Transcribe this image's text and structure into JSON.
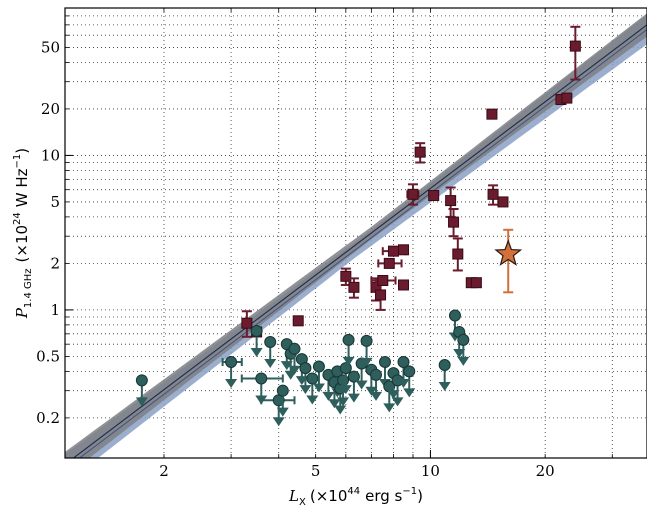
{
  "chart_data": {
    "type": "scatter",
    "x_scale": "log",
    "y_scale": "log",
    "xlim": [
      1.1,
      37
    ],
    "ylim": [
      0.11,
      90
    ],
    "grid": true,
    "xlabel": {
      "var": "L",
      "sub": "X",
      "open": "(",
      "times10": "×10",
      "exp": "44",
      "unit": "erg s",
      "unit_exp": "−1",
      "close": ")"
    },
    "ylabel": {
      "var": "P",
      "sub": "1.4 GHz",
      "open": "(",
      "times10": "×10",
      "exp": "24",
      "unit": "W Hz",
      "unit_exp": "−1",
      "close": ")"
    },
    "x_ticks": [
      {
        "value": 2,
        "label": "2"
      },
      {
        "value": 5,
        "label": "5"
      },
      {
        "value": 10,
        "label": "10"
      },
      {
        "value": 20,
        "label": "20"
      }
    ],
    "y_ticks": [
      {
        "value": 0.2,
        "label": "0.2"
      },
      {
        "value": 0.5,
        "label": "0.5"
      },
      {
        "value": 1,
        "label": "1"
      },
      {
        "value": 2,
        "label": "2"
      },
      {
        "value": 5,
        "label": "5"
      },
      {
        "value": 10,
        "label": "10"
      },
      {
        "value": 20,
        "label": "20"
      },
      {
        "value": 50,
        "label": "50"
      }
    ],
    "colors": {
      "detections": "#6a1c2e",
      "upper_limits": "#2e5f5c",
      "highlight": "#d0703a",
      "fit_line": "#1f2a44",
      "band_dark": "#7c7f84",
      "band_light": "#8aa0c4"
    },
    "series": [
      {
        "kind": "detections",
        "marker": "square",
        "points": [
          {
            "x": 3.3,
            "y": 0.82,
            "yerr": [
              0.67,
              0.98
            ]
          },
          {
            "x": 3.5,
            "y": 0.72
          },
          {
            "x": 4.5,
            "y": 0.85
          },
          {
            "x": 6.0,
            "y": 1.65,
            "yerr": [
              1.45,
              1.85
            ]
          },
          {
            "x": 6.3,
            "y": 1.4,
            "yerr": [
              1.2,
              1.6
            ]
          },
          {
            "x": 7.2,
            "y": 1.4,
            "yerr": [
              1.15,
              1.6
            ]
          },
          {
            "x": 7.4,
            "y": 1.25,
            "yerr": [
              1.0,
              1.5
            ]
          },
          {
            "x": 7.5,
            "y": 1.55,
            "xerr": [
              7.0,
              8.1
            ]
          },
          {
            "x": 7.8,
            "y": 2.0,
            "xerr": [
              7.3,
              8.4
            ]
          },
          {
            "x": 8.0,
            "y": 2.4,
            "xerr": [
              7.5,
              8.6
            ]
          },
          {
            "x": 8.5,
            "y": 2.45
          },
          {
            "x": 8.5,
            "y": 1.45
          },
          {
            "x": 9.0,
            "y": 5.6,
            "yerr": [
              4.8,
              6.5
            ],
            "xerr": [
              8.7,
              9.3
            ]
          },
          {
            "x": 9.4,
            "y": 10.5,
            "yerr": [
              9.0,
              12.0
            ]
          },
          {
            "x": 10.2,
            "y": 5.5
          },
          {
            "x": 11.3,
            "y": 5.1,
            "yerr": [
              4.0,
              6.2
            ]
          },
          {
            "x": 11.5,
            "y": 3.7,
            "yerr": [
              3.0,
              4.5
            ]
          },
          {
            "x": 11.8,
            "y": 2.3,
            "yerr": [
              1.8,
              2.9
            ]
          },
          {
            "x": 12.8,
            "y": 1.5
          },
          {
            "x": 13.2,
            "y": 1.5
          },
          {
            "x": 14.5,
            "y": 18.5
          },
          {
            "x": 14.6,
            "y": 5.6,
            "yerr": [
              4.8,
              6.4
            ]
          },
          {
            "x": 15.5,
            "y": 5.0
          },
          {
            "x": 22.0,
            "y": 23.0
          },
          {
            "x": 22.8,
            "y": 23.5
          },
          {
            "x": 24.0,
            "y": 51.0,
            "yerr": [
              31.0,
              68.0
            ]
          }
        ]
      },
      {
        "kind": "upper_limits",
        "marker": "circle",
        "points": [
          {
            "x": 1.75,
            "y": 0.35
          },
          {
            "x": 3.0,
            "y": 0.46,
            "xerr": [
              2.85,
              3.2
            ]
          },
          {
            "x": 3.5,
            "y": 0.73
          },
          {
            "x": 3.6,
            "y": 0.36,
            "xerr": [
              3.2,
              4.1
            ]
          },
          {
            "x": 3.8,
            "y": 0.62
          },
          {
            "x": 4.0,
            "y": 0.26,
            "xerr": [
              3.6,
              4.4
            ]
          },
          {
            "x": 4.1,
            "y": 0.3
          },
          {
            "x": 4.2,
            "y": 0.6
          },
          {
            "x": 4.3,
            "y": 0.52
          },
          {
            "x": 4.4,
            "y": 0.56
          },
          {
            "x": 4.6,
            "y": 0.48
          },
          {
            "x": 4.7,
            "y": 0.42
          },
          {
            "x": 4.9,
            "y": 0.36
          },
          {
            "x": 5.1,
            "y": 0.43
          },
          {
            "x": 5.4,
            "y": 0.38
          },
          {
            "x": 5.6,
            "y": 0.34
          },
          {
            "x": 5.7,
            "y": 0.4
          },
          {
            "x": 5.8,
            "y": 0.31
          },
          {
            "x": 5.9,
            "y": 0.35
          },
          {
            "x": 6.0,
            "y": 0.42
          },
          {
            "x": 6.1,
            "y": 0.64
          },
          {
            "x": 6.3,
            "y": 0.37
          },
          {
            "x": 6.6,
            "y": 0.45
          },
          {
            "x": 6.8,
            "y": 0.63
          },
          {
            "x": 7.0,
            "y": 0.41
          },
          {
            "x": 7.2,
            "y": 0.38
          },
          {
            "x": 7.6,
            "y": 0.46
          },
          {
            "x": 7.8,
            "y": 0.32
          },
          {
            "x": 8.0,
            "y": 0.39
          },
          {
            "x": 8.2,
            "y": 0.35
          },
          {
            "x": 8.5,
            "y": 0.46
          },
          {
            "x": 8.8,
            "y": 0.4
          },
          {
            "x": 10.9,
            "y": 0.44
          },
          {
            "x": 11.6,
            "y": 0.92
          },
          {
            "x": 11.9,
            "y": 0.72
          },
          {
            "x": 12.2,
            "y": 0.64
          }
        ]
      },
      {
        "kind": "highlight",
        "marker": "star",
        "points": [
          {
            "x": 16.0,
            "y": 2.3,
            "yerr": [
              1.3,
              3.3
            ]
          }
        ]
      }
    ],
    "fit": {
      "points": [
        [
          1.1,
          0.1
        ],
        [
          37,
          70
        ]
      ]
    }
  }
}
